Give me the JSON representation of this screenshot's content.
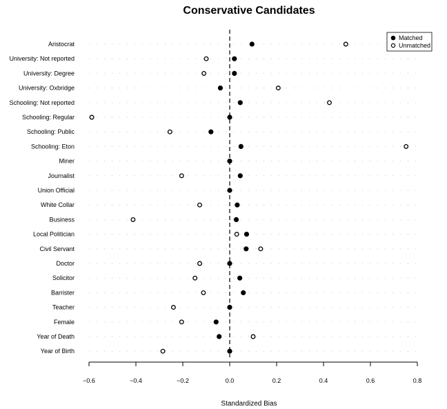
{
  "chart_data": {
    "type": "scatter",
    "title": "Conservative Candidates",
    "xlabel": "Standardized Bias",
    "ylabel": "",
    "xlim": [
      -0.6,
      0.8
    ],
    "xticks": [
      -0.6,
      -0.4,
      -0.2,
      0.0,
      0.2,
      0.4,
      0.6,
      0.8
    ],
    "xtick_labels": [
      "−0.6",
      "−0.4",
      "−0.2",
      "0.0",
      "0.2",
      "0.4",
      "0.6",
      "0.8"
    ],
    "reference_line_x": 0.0,
    "grid": "dotted guide line per category",
    "legend_position": "top-right",
    "categories": [
      "Aristocrat",
      "University: Not reported",
      "University: Degree",
      "University: Oxbridge",
      "Schooling: Not reported",
      "Schooling: Regular",
      "Schooling: Public",
      "Schooling: Eton",
      "Miner",
      "Journalist",
      "Union Official",
      "White Collar",
      "Business",
      "Local Politician",
      "Civil Servant",
      "Doctor",
      "Solicitor",
      "Barrister",
      "Teacher",
      "Female",
      "Year of Death",
      "Year of Birth"
    ],
    "series": [
      {
        "name": "Matched",
        "marker": "filled",
        "values": [
          0.095,
          0.02,
          0.02,
          -0.04,
          0.045,
          0.0,
          -0.08,
          0.048,
          0.0,
          0.045,
          0.0,
          0.032,
          0.028,
          0.072,
          0.07,
          0.0,
          0.043,
          0.058,
          0.0,
          -0.058,
          -0.045,
          0.0
        ]
      },
      {
        "name": "Unmatched",
        "marker": "open",
        "values": [
          0.495,
          -0.1,
          -0.11,
          0.207,
          0.425,
          -0.588,
          -0.255,
          0.752,
          null,
          -0.205,
          null,
          -0.128,
          -0.412,
          0.03,
          0.132,
          -0.128,
          -0.148,
          -0.112,
          -0.24,
          -0.205,
          0.1,
          -0.285
        ]
      }
    ]
  }
}
